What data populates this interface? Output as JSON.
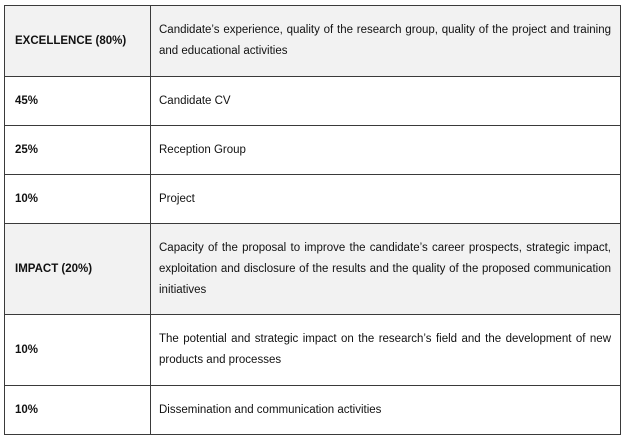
{
  "rows": [
    {
      "label": "EXCELLENCE (80%)",
      "description": "Candidate’s experience, quality of the research group, quality of the project and training and educational activities",
      "highlight": true
    },
    {
      "label": "45%",
      "description": "Candidate CV",
      "highlight": false
    },
    {
      "label": "25%",
      "description": "Reception Group",
      "highlight": false
    },
    {
      "label": "10%",
      "description": "Project",
      "highlight": false
    },
    {
      "label": "IMPACT (20%)",
      "description": "Capacity of the proposal to improve the candidate’s career prospects, strategic impact, exploitation and disclosure of the results and the quality of the proposed communication initiatives",
      "highlight": true
    },
    {
      "label": "10%",
      "description": "The potential and strategic impact on the research’s field  and the development of new products and processes",
      "highlight": false
    },
    {
      "label": "10%",
      "description": "Dissemination and communication activities",
      "highlight": false
    }
  ],
  "colors": {
    "header_background": "#f2f2f2",
    "border": "#3a3a3a",
    "text": "#111111"
  }
}
